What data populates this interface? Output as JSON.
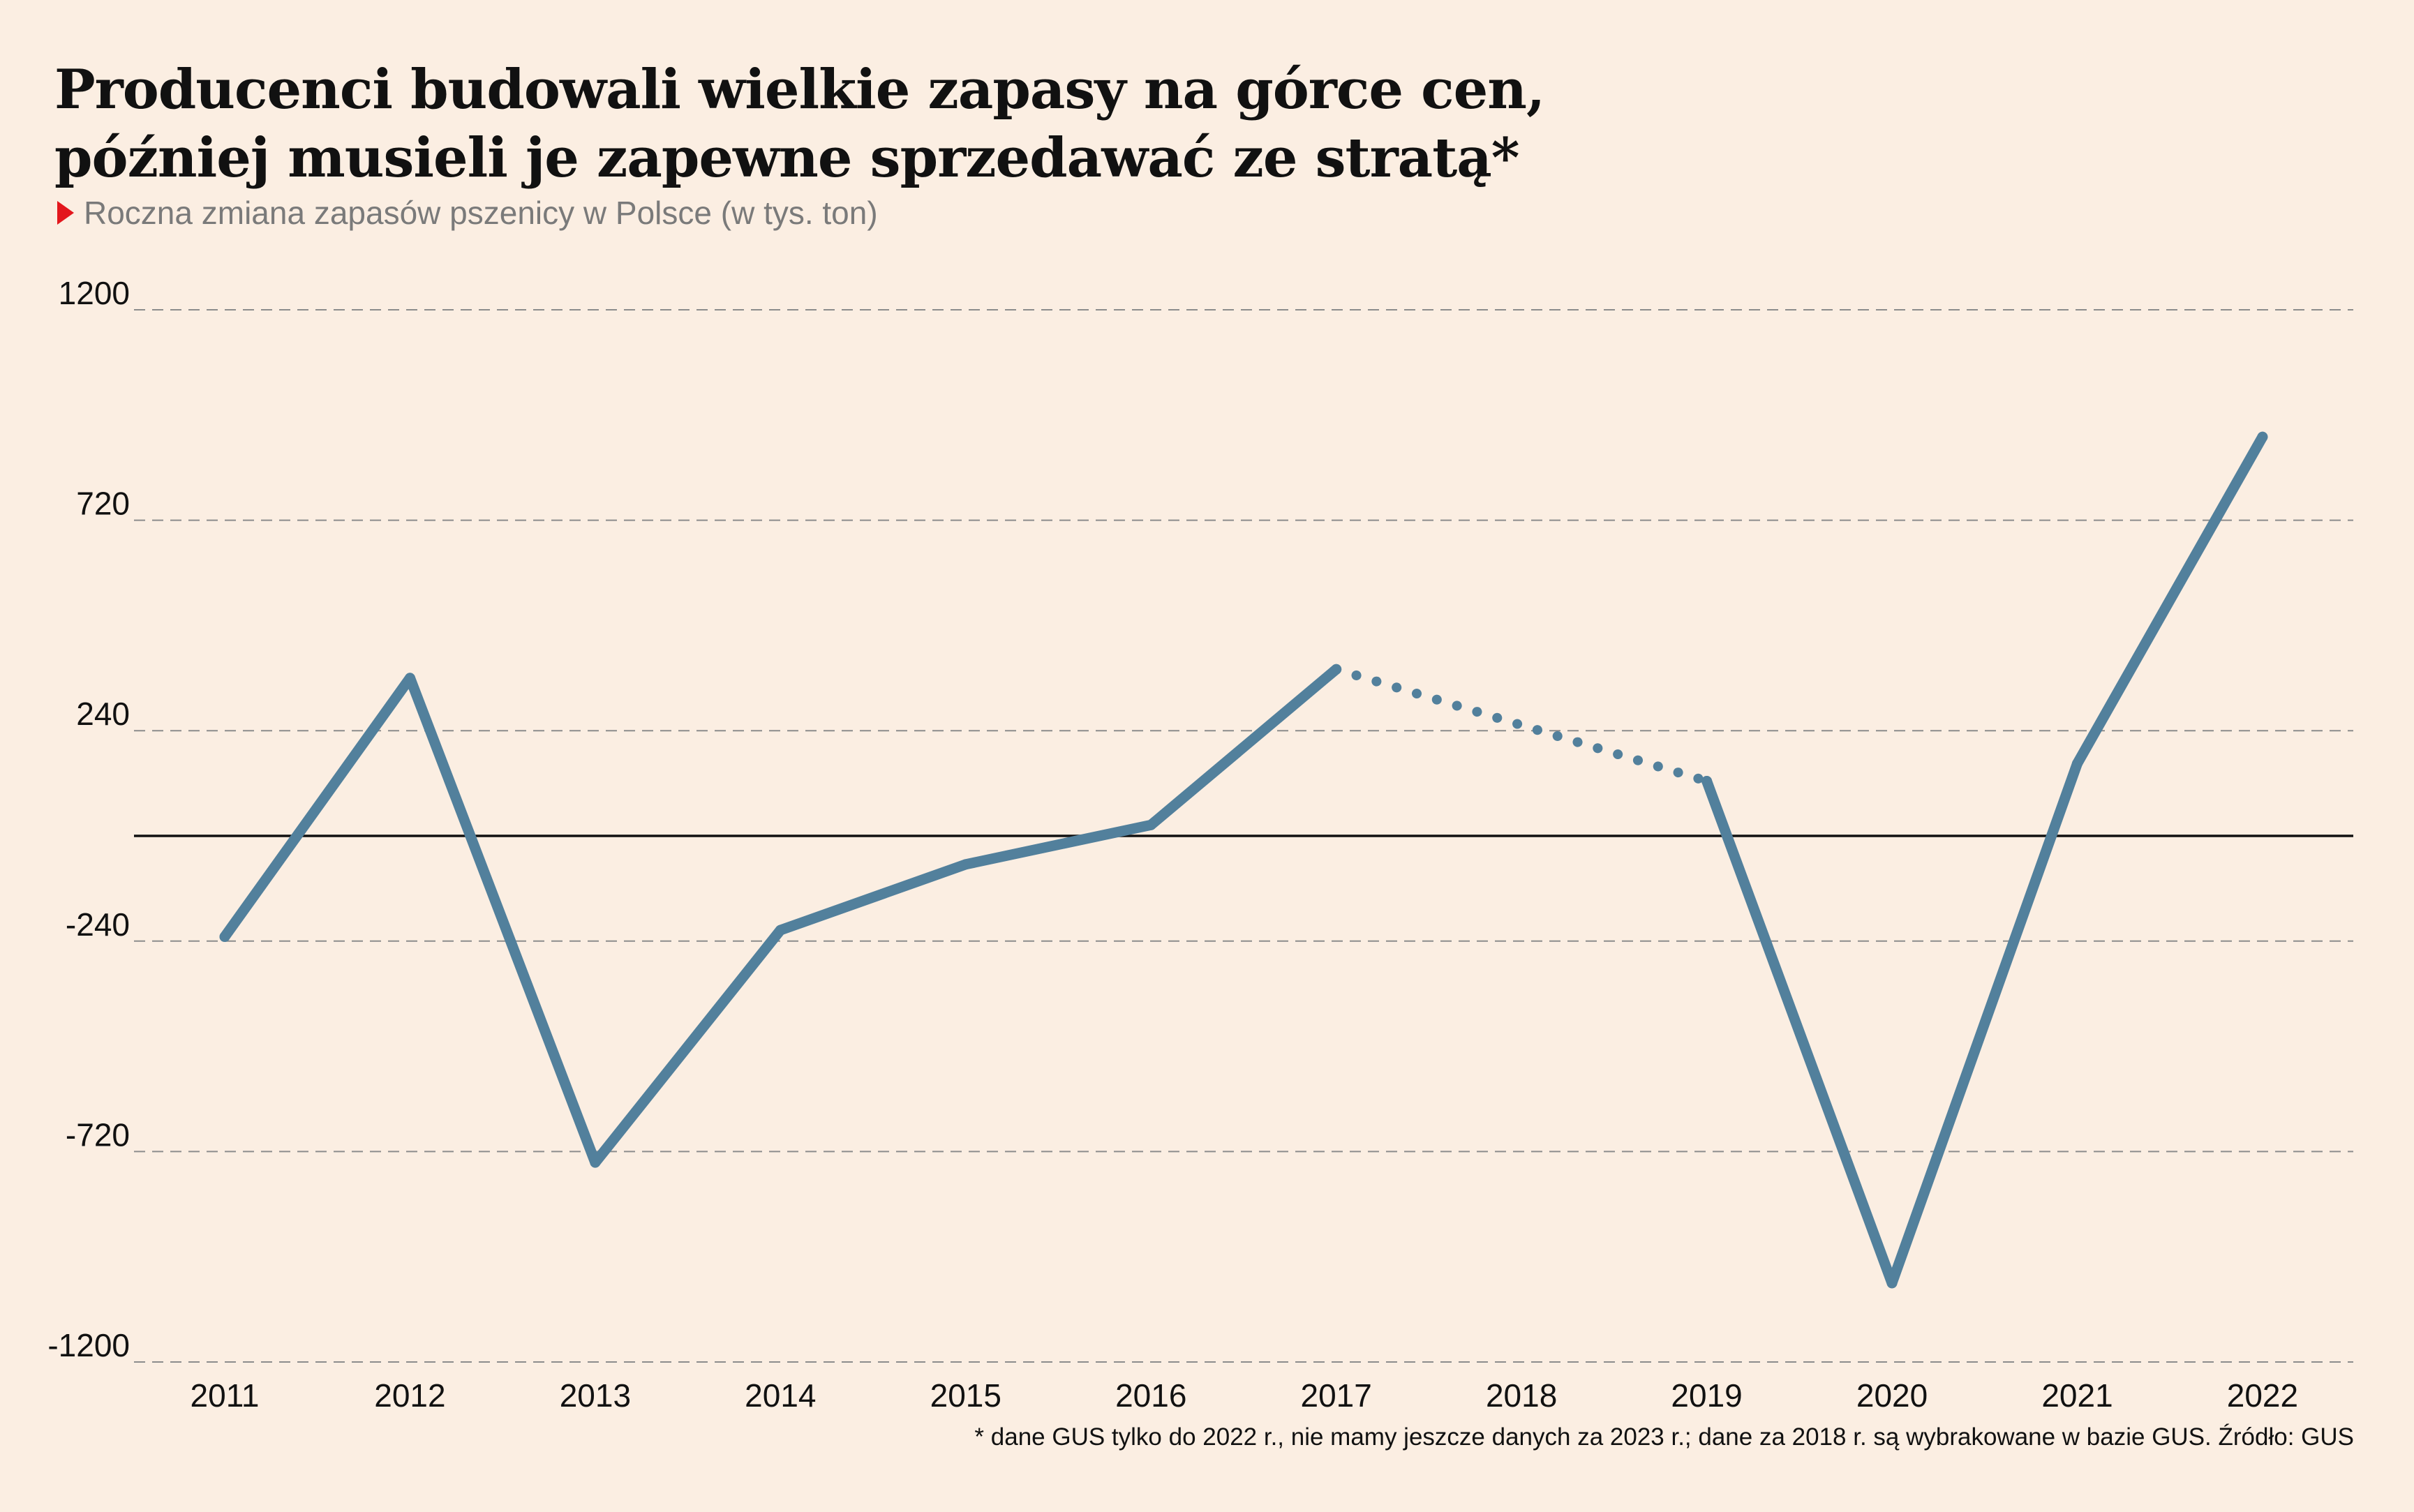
{
  "title_lines": [
    "Producenci budowali wielkie zapasy na górce cen,",
    "później musieli je zapewne sprzedawać ze stratą*"
  ],
  "subtitle": "Roczna zmiana zapasów pszenicy w Polsce (w tys. ton)",
  "footnote": "* dane GUS tylko do 2022 r., nie mamy jeszcze danych za 2023 r.; dane za 2018 r. są wybrakowane w bazie GUS. Źródło: GUS",
  "colors": {
    "background": "#fbeee2",
    "line": "#52809c",
    "marker": "#e3171d",
    "grid": "#8c8c8c",
    "zero_line": "#111111"
  },
  "chart_data": {
    "type": "line",
    "title": "Producenci budowali wielkie zapasy na górce cen, później musieli je zapewne sprzedawać ze stratą*",
    "subtitle": "Roczna zmiana zapasów pszenicy w Polsce (w tys. ton)",
    "xlabel": "",
    "ylabel": "",
    "x": [
      "2011",
      "2012",
      "2013",
      "2014",
      "2015",
      "2016",
      "2017",
      "2019",
      "2020",
      "2021",
      "2022"
    ],
    "ylim": [
      -1200,
      1200
    ],
    "yticks": [
      "1200",
      "720",
      "240",
      "-240",
      "-720",
      "-1200"
    ],
    "xticks": [
      "2011",
      "2012",
      "2013",
      "2014",
      "2015",
      "2016",
      "2017",
      "2018",
      "2019",
      "2020",
      "2021",
      "2022"
    ],
    "grid": "dashed horizontal",
    "series": [
      {
        "values": [
          {
            "x": "2011",
            "y": -230
          },
          {
            "x": "2012",
            "y": 360
          },
          {
            "x": "2013",
            "y": -745
          },
          {
            "x": "2014",
            "y": -215
          },
          {
            "x": "2015",
            "y": -65
          },
          {
            "x": "2016",
            "y": 25
          },
          {
            "x": "2017",
            "y": 380
          },
          {
            "x": "2019",
            "y": 125
          },
          {
            "x": "2020",
            "y": -1020
          },
          {
            "x": "2021",
            "y": 165
          },
          {
            "x": "2022",
            "y": 910
          }
        ],
        "dotted_segment": [
          "2017",
          "2019"
        ]
      }
    ]
  }
}
